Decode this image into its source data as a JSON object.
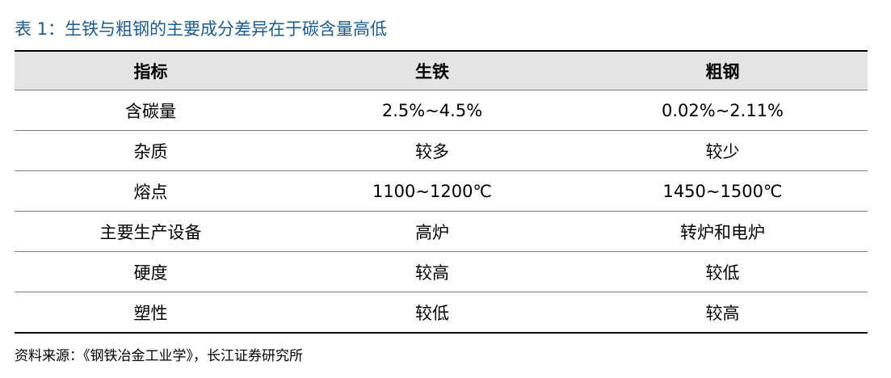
{
  "title": "表 1：生铁与粗钢的主要成分差异在于碳含量高低",
  "table": {
    "headers": [
      "指标",
      "生铁",
      "粗钢"
    ],
    "rows": [
      [
        "含碳量",
        "2.5%~4.5%",
        "0.02%~2.11%"
      ],
      [
        "杂质",
        "较多",
        "较少"
      ],
      [
        "熔点",
        "1100~1200℃",
        "1450~1500℃"
      ],
      [
        "主要生产设备",
        "高炉",
        "转炉和电炉"
      ],
      [
        "硬度",
        "较高",
        "较低"
      ],
      [
        "塑性",
        "较低",
        "较高"
      ]
    ]
  },
  "source": "资料来源：《钢铁冶金工业学》，长江证券研究所",
  "colors": {
    "title": "#1f5a8c",
    "header_bg": "#e4e4e4",
    "rule": "#7f7f7f"
  }
}
